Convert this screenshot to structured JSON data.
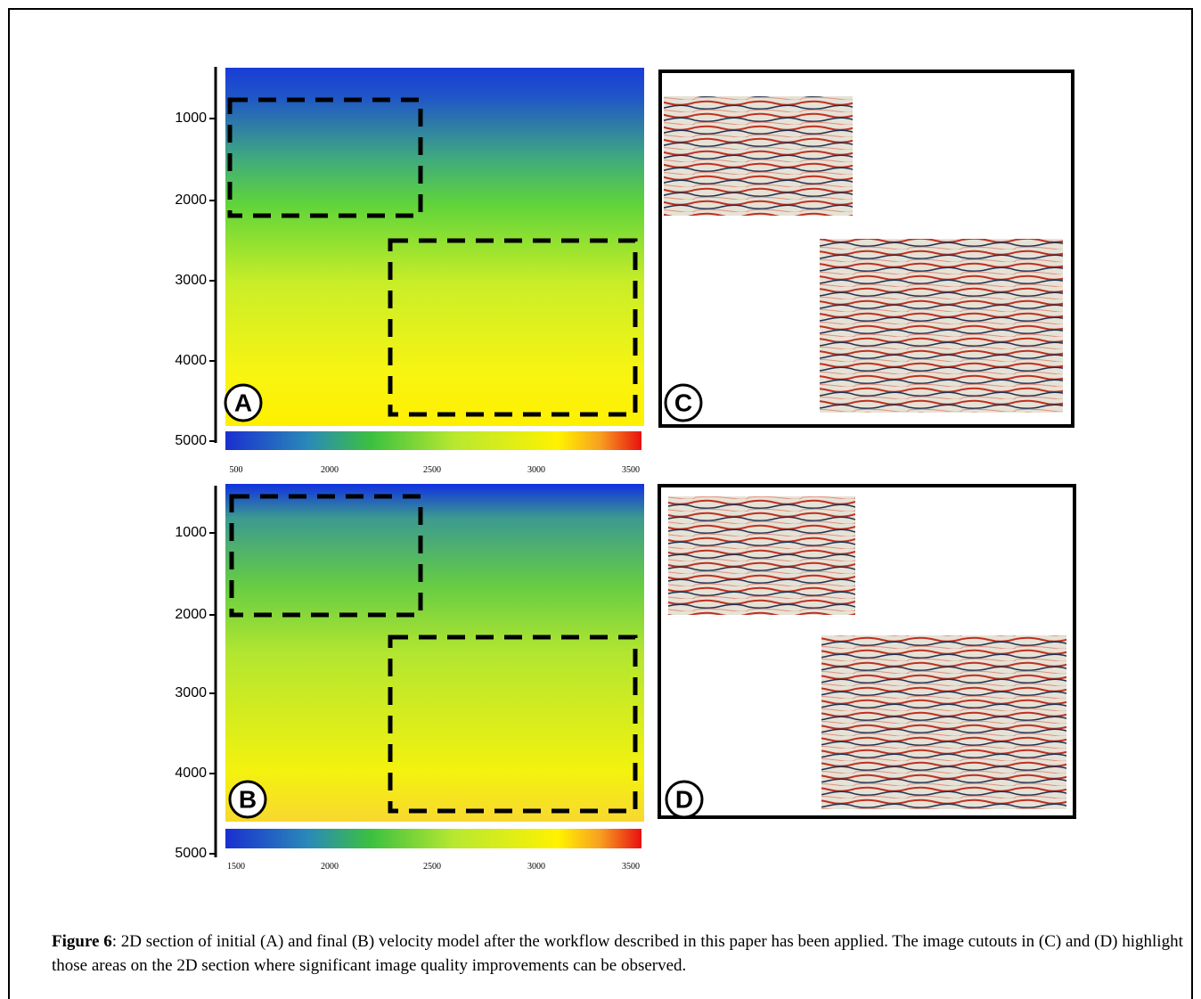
{
  "figure": {
    "panels": [
      {
        "label": "A",
        "depth_ticks": [
          1000,
          2000,
          3000,
          4000,
          5000
        ],
        "colorbar_ticks": [
          500,
          2000,
          2500,
          3000,
          3500
        ]
      },
      {
        "label": "B",
        "depth_ticks": [
          1000,
          2000,
          3000,
          4000,
          5000
        ],
        "colorbar_ticks": [
          1500,
          2000,
          2500,
          3000,
          3500
        ]
      },
      {
        "label": "C"
      },
      {
        "label": "D"
      }
    ],
    "caption": {
      "label": "Figure 6",
      "text": ": 2D section of initial (A) and final (B) velocity model after the workflow described in this paper has been applied. The image cutouts in (C) and (D) highlight those areas on the 2D section where significant image quality improvements can be observed."
    }
  }
}
